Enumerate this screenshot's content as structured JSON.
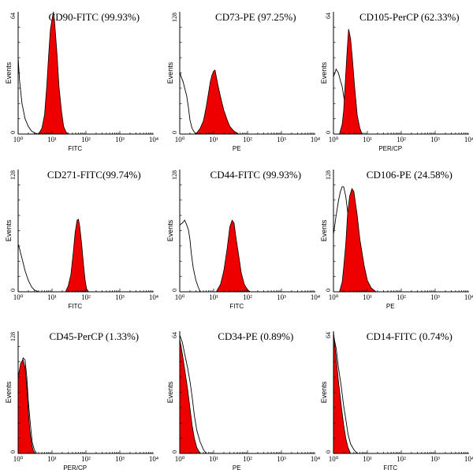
{
  "chart_data": [
    {
      "type": "area",
      "title": "CD90-FITC (99.93%)",
      "xlabel": "FITC",
      "ylabel": "Events",
      "x_scale": "log",
      "xlim": [
        1,
        10000
      ],
      "ylim": [
        0,
        64
      ],
      "xticks": [
        "10⁰",
        "10¹",
        "10²",
        "10³",
        "10⁴"
      ],
      "yticks": [
        "0",
        "64"
      ],
      "series": [
        {
          "kind": "control",
          "fill": false,
          "color": "#000000",
          "points": [
            [
              1,
              40
            ],
            [
              1.1,
              28
            ],
            [
              1.3,
              16
            ],
            [
              1.6,
              8
            ],
            [
              2,
              4
            ],
            [
              2.5,
              1.5
            ],
            [
              3.2,
              0.5
            ],
            [
              4,
              0
            ]
          ]
        },
        {
          "kind": "stained",
          "fill": true,
          "color": "#ee0000",
          "points": [
            [
              4,
              0
            ],
            [
              5,
              3
            ],
            [
              6,
              10
            ],
            [
              7,
              25
            ],
            [
              8,
              42
            ],
            [
              9,
              55
            ],
            [
              10,
              60
            ],
            [
              11,
              64
            ],
            [
              12,
              58
            ],
            [
              14,
              42
            ],
            [
              16,
              25
            ],
            [
              19,
              12
            ],
            [
              22,
              4
            ],
            [
              26,
              1
            ],
            [
              30,
              0
            ]
          ]
        }
      ]
    },
    {
      "type": "area",
      "title": "CD73-PE (97.25%)",
      "xlabel": "PE",
      "ylabel": "Events",
      "x_scale": "log",
      "xlim": [
        1,
        10000
      ],
      "ylim": [
        0,
        128
      ],
      "xticks": [
        "10⁰",
        "10¹",
        "10²",
        "10³",
        "10⁴"
      ],
      "yticks": [
        "0",
        "128"
      ],
      "series": [
        {
          "kind": "control",
          "fill": false,
          "color": "#000000",
          "points": [
            [
              1,
              65
            ],
            [
              1.1,
              60
            ],
            [
              1.25,
              55
            ],
            [
              1.4,
              48
            ],
            [
              1.6,
              40
            ],
            [
              1.8,
              28
            ],
            [
              2,
              15
            ],
            [
              2.3,
              6
            ],
            [
              2.7,
              2
            ],
            [
              3,
              0
            ]
          ]
        },
        {
          "kind": "stained",
          "fill": true,
          "color": "#ee0000",
          "points": [
            [
              3,
              0
            ],
            [
              4,
              6
            ],
            [
              5,
              14
            ],
            [
              6,
              28
            ],
            [
              7,
              42
            ],
            [
              8,
              55
            ],
            [
              9,
              62
            ],
            [
              10,
              66
            ],
            [
              11,
              67
            ],
            [
              12,
              60
            ],
            [
              14,
              48
            ],
            [
              17,
              35
            ],
            [
              20,
              25
            ],
            [
              25,
              15
            ],
            [
              30,
              8
            ],
            [
              40,
              3
            ],
            [
              55,
              0
            ]
          ]
        }
      ]
    },
    {
      "type": "area",
      "title": "CD105-PerCP (62.33%)",
      "xlabel": "PER/CP",
      "ylabel": "Events",
      "x_scale": "log",
      "xlim": [
        1,
        10000
      ],
      "ylim": [
        0,
        64
      ],
      "xticks": [
        "10⁰",
        "10¹",
        "10²",
        "10³",
        "10⁴"
      ],
      "yticks": [
        "0",
        "64"
      ],
      "series": [
        {
          "kind": "control",
          "fill": false,
          "color": "#000000",
          "points": [
            [
              1,
              30
            ],
            [
              1.2,
              34
            ],
            [
              1.4,
              32
            ],
            [
              1.6,
              28
            ],
            [
              1.8,
              25
            ],
            [
              2,
              20
            ],
            [
              2.3,
              14
            ],
            [
              2.6,
              8
            ],
            [
              3,
              3
            ],
            [
              3.5,
              0
            ]
          ]
        },
        {
          "kind": "stained",
          "fill": true,
          "color": "#ee0000",
          "points": [
            [
              1.5,
              0
            ],
            [
              1.8,
              5
            ],
            [
              2,
              12
            ],
            [
              2.2,
              25
            ],
            [
              2.5,
              42
            ],
            [
              2.8,
              55
            ],
            [
              3.2,
              50
            ],
            [
              3.6,
              40
            ],
            [
              4.2,
              25
            ],
            [
              5,
              10
            ],
            [
              6,
              3
            ],
            [
              7,
              0
            ]
          ]
        }
      ]
    },
    {
      "type": "area",
      "title": "CD271-FITC(99.74%)",
      "xlabel": "FITC",
      "ylabel": "Events",
      "x_scale": "log",
      "xlim": [
        1,
        10000
      ],
      "ylim": [
        0,
        128
      ],
      "xticks": [
        "10⁰",
        "10¹",
        "10²",
        "10³",
        "10⁴"
      ],
      "yticks": [
        "0",
        "128"
      ],
      "series": [
        {
          "kind": "control",
          "fill": false,
          "color": "#000000",
          "points": [
            [
              1,
              50
            ],
            [
              1.1,
              45
            ],
            [
              1.3,
              35
            ],
            [
              1.6,
              22
            ],
            [
              2,
              12
            ],
            [
              2.5,
              5
            ],
            [
              3,
              2
            ],
            [
              4,
              0
            ]
          ]
        },
        {
          "kind": "stained",
          "fill": true,
          "color": "#ee0000",
          "points": [
            [
              25,
              0
            ],
            [
              30,
              6
            ],
            [
              36,
              18
            ],
            [
              42,
              40
            ],
            [
              48,
              62
            ],
            [
              55,
              75
            ],
            [
              60,
              76
            ],
            [
              66,
              68
            ],
            [
              75,
              50
            ],
            [
              85,
              28
            ],
            [
              95,
              12
            ],
            [
              105,
              3
            ],
            [
              120,
              0
            ]
          ]
        }
      ]
    },
    {
      "type": "area",
      "title": "CD44-FITC (99.93%)",
      "xlabel": "FITC",
      "ylabel": "Events",
      "x_scale": "log",
      "xlim": [
        1,
        10000
      ],
      "ylim": [
        0,
        128
      ],
      "xticks": [
        "10⁰",
        "10¹",
        "10²",
        "10³",
        "10⁴"
      ],
      "yticks": [
        "0",
        "128"
      ],
      "series": [
        {
          "kind": "control",
          "fill": false,
          "color": "#000000",
          "points": [
            [
              1,
              70
            ],
            [
              1.2,
              72
            ],
            [
              1.4,
              75
            ],
            [
              1.6,
              70
            ],
            [
              1.8,
              65
            ],
            [
              2,
              55
            ],
            [
              2.2,
              40
            ],
            [
              2.5,
              25
            ],
            [
              3,
              12
            ],
            [
              3.5,
              5
            ],
            [
              4,
              0
            ]
          ]
        },
        {
          "kind": "stained",
          "fill": true,
          "color": "#ee0000",
          "points": [
            [
              12,
              0
            ],
            [
              16,
              8
            ],
            [
              20,
              22
            ],
            [
              25,
              45
            ],
            [
              30,
              68
            ],
            [
              35,
              75
            ],
            [
              40,
              72
            ],
            [
              45,
              58
            ],
            [
              55,
              38
            ],
            [
              65,
              20
            ],
            [
              80,
              8
            ],
            [
              100,
              2
            ],
            [
              120,
              0
            ]
          ]
        }
      ]
    },
    {
      "type": "area",
      "title": "CD106-PE (24.58%)",
      "xlabel": "PE",
      "ylabel": "Events",
      "x_scale": "log",
      "xlim": [
        1,
        10000
      ],
      "ylim": [
        0,
        128
      ],
      "xticks": [
        "10⁰",
        "10¹",
        "10²",
        "10³",
        "10⁴"
      ],
      "yticks": [
        "0",
        "128"
      ],
      "series": [
        {
          "kind": "control",
          "fill": false,
          "color": "#000000",
          "points": [
            [
              1,
              60
            ],
            [
              1.2,
              80
            ],
            [
              1.4,
              95
            ],
            [
              1.6,
              105
            ],
            [
              1.8,
              110
            ],
            [
              2,
              110
            ],
            [
              2.3,
              100
            ],
            [
              2.6,
              85
            ],
            [
              3,
              60
            ],
            [
              3.5,
              30
            ],
            [
              4,
              12
            ],
            [
              5,
              4
            ],
            [
              6,
              0
            ]
          ]
        },
        {
          "kind": "stained",
          "fill": true,
          "color": "#ee0000",
          "points": [
            [
              1.5,
              0
            ],
            [
              1.8,
              10
            ],
            [
              2,
              25
            ],
            [
              2.3,
              50
            ],
            [
              2.6,
              80
            ],
            [
              3,
              100
            ],
            [
              3.5,
              108
            ],
            [
              4,
              105
            ],
            [
              5,
              80
            ],
            [
              6,
              55
            ],
            [
              8,
              28
            ],
            [
              10,
              12
            ],
            [
              13,
              4
            ],
            [
              18,
              0
            ]
          ]
        }
      ]
    },
    {
      "type": "area",
      "title": "CD45-PerCP (1.33%)",
      "xlabel": "PER/CP",
      "ylabel": "Events",
      "x_scale": "log",
      "xlim": [
        1,
        10000
      ],
      "ylim": [
        0,
        128
      ],
      "xticks": [
        "10⁰",
        "10¹",
        "10²",
        "10³",
        "10⁴"
      ],
      "yticks": [
        "0",
        "128"
      ],
      "series": [
        {
          "kind": "control",
          "fill": false,
          "color": "#000000",
          "points": [
            [
              1,
              70
            ],
            [
              1.2,
              90
            ],
            [
              1.4,
              100
            ],
            [
              1.6,
              98
            ],
            [
              1.8,
              80
            ],
            [
              2,
              55
            ],
            [
              2.3,
              30
            ],
            [
              2.6,
              12
            ],
            [
              3,
              4
            ],
            [
              3.5,
              0
            ]
          ]
        },
        {
          "kind": "stained",
          "fill": true,
          "color": "#ee0000",
          "points": [
            [
              1,
              80
            ],
            [
              1.2,
              95
            ],
            [
              1.4,
              98
            ],
            [
              1.6,
              90
            ],
            [
              1.8,
              70
            ],
            [
              2,
              45
            ],
            [
              2.2,
              25
            ],
            [
              2.5,
              10
            ],
            [
              2.8,
              3
            ],
            [
              3.2,
              0
            ]
          ]
        }
      ]
    },
    {
      "type": "area",
      "title": "CD34-PE (0.89%)",
      "xlabel": "PE",
      "ylabel": "Events",
      "x_scale": "log",
      "xlim": [
        1,
        10000
      ],
      "ylim": [
        0,
        64
      ],
      "xticks": [
        "10⁰",
        "10¹",
        "10²",
        "10³",
        "10⁴"
      ],
      "yticks": [
        "0",
        "64"
      ],
      "series": [
        {
          "kind": "control",
          "fill": false,
          "color": "#000000",
          "points": [
            [
              1,
              62
            ],
            [
              1.2,
              58
            ],
            [
              1.4,
              52
            ],
            [
              1.7,
              45
            ],
            [
              2,
              38
            ],
            [
              2.3,
              30
            ],
            [
              2.7,
              20
            ],
            [
              3.2,
              12
            ],
            [
              4,
              6
            ],
            [
              5,
              2
            ],
            [
              6,
              0
            ]
          ]
        },
        {
          "kind": "stained",
          "fill": true,
          "color": "#ee0000",
          "points": [
            [
              1,
              60
            ],
            [
              1.2,
              52
            ],
            [
              1.4,
              44
            ],
            [
              1.7,
              34
            ],
            [
              2,
              24
            ],
            [
              2.3,
              15
            ],
            [
              2.7,
              8
            ],
            [
              3.2,
              3
            ],
            [
              4,
              0
            ]
          ]
        }
      ]
    },
    {
      "type": "area",
      "title": "CD14-FITC (0.74%)",
      "xlabel": "FITC",
      "ylabel": "Events",
      "x_scale": "log",
      "xlim": [
        1,
        10000
      ],
      "ylim": [
        0,
        64
      ],
      "xticks": [
        "10⁰",
        "10¹",
        "10²",
        "10³",
        "10⁴"
      ],
      "yticks": [
        "0",
        "64"
      ],
      "series": [
        {
          "kind": "control",
          "fill": false,
          "color": "#000000",
          "points": [
            [
              1,
              62
            ],
            [
              1.2,
              55
            ],
            [
              1.4,
              45
            ],
            [
              1.7,
              35
            ],
            [
              2,
              25
            ],
            [
              2.3,
              18
            ],
            [
              2.7,
              10
            ],
            [
              3.2,
              5
            ],
            [
              4,
              2
            ],
            [
              5,
              0
            ]
          ]
        },
        {
          "kind": "stained",
          "fill": true,
          "color": "#ee0000",
          "points": [
            [
              1,
              64
            ],
            [
              1.2,
              50
            ],
            [
              1.4,
              38
            ],
            [
              1.7,
              25
            ],
            [
              2,
              15
            ],
            [
              2.3,
              8
            ],
            [
              2.7,
              3
            ],
            [
              3.2,
              0
            ]
          ]
        }
      ]
    }
  ]
}
